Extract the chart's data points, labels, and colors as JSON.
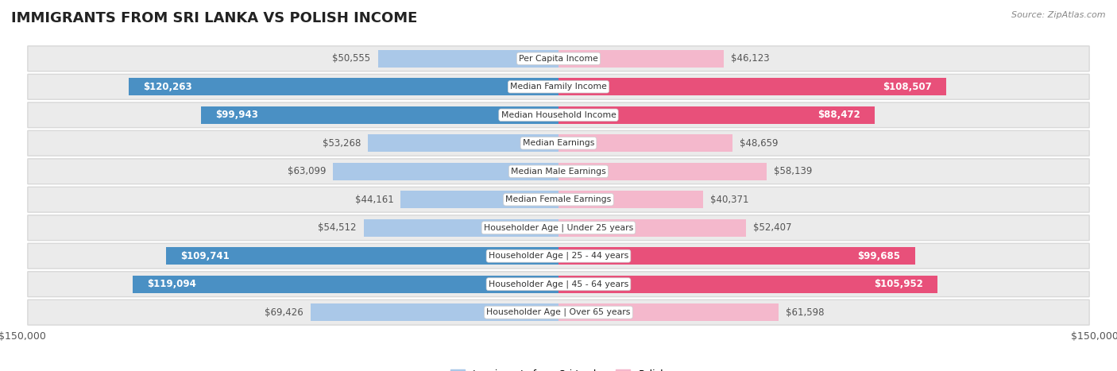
{
  "title": "IMMIGRANTS FROM SRI LANKA VS POLISH INCOME",
  "source": "Source: ZipAtlas.com",
  "categories": [
    "Per Capita Income",
    "Median Family Income",
    "Median Household Income",
    "Median Earnings",
    "Median Male Earnings",
    "Median Female Earnings",
    "Householder Age | Under 25 years",
    "Householder Age | 25 - 44 years",
    "Householder Age | 45 - 64 years",
    "Householder Age | Over 65 years"
  ],
  "sri_lanka_values": [
    50555,
    120263,
    99943,
    53268,
    63099,
    44161,
    54512,
    109741,
    119094,
    69426
  ],
  "polish_values": [
    46123,
    108507,
    88472,
    48659,
    58139,
    40371,
    52407,
    99685,
    105952,
    61598
  ],
  "sri_lanka_labels": [
    "$50,555",
    "$120,263",
    "$99,943",
    "$53,268",
    "$63,099",
    "$44,161",
    "$54,512",
    "$109,741",
    "$119,094",
    "$69,426"
  ],
  "polish_labels": [
    "$46,123",
    "$108,507",
    "$88,472",
    "$48,659",
    "$58,139",
    "$40,371",
    "$52,407",
    "$99,685",
    "$105,952",
    "$61,598"
  ],
  "sri_lanka_color_light": "#aac8e8",
  "sri_lanka_color_dark": "#4a90c4",
  "polish_color_light": "#f4b8cc",
  "polish_color_dark": "#e8507a",
  "inside_threshold": 75000,
  "max_value": 150000,
  "label_color_inside": "#ffffff",
  "label_color_outside": "#555555",
  "background_color": "#ffffff",
  "row_bg_color": "#ebebeb",
  "row_border_color": "#d8d8d8",
  "bar_height": 0.62,
  "legend_label_sri": "Immigrants from Sri Lanka",
  "legend_label_polish": "Polish"
}
